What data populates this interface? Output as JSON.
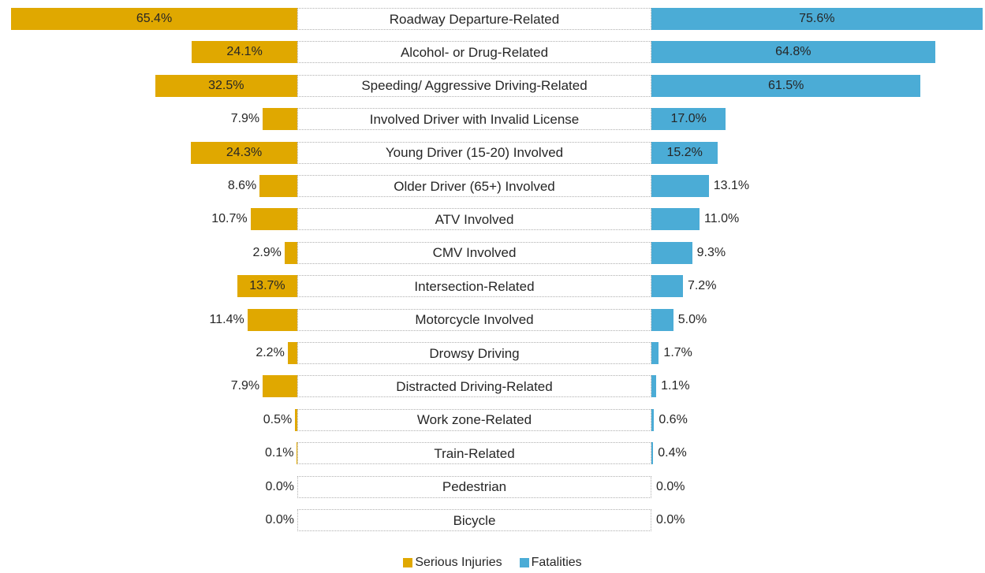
{
  "chart_data": {
    "type": "butterfly-bar",
    "categories": [
      "Roadway Departure-Related",
      "Alcohol- or Drug-Related",
      "Speeding/ Aggressive Driving-Related",
      "Involved Driver with Invalid License",
      "Young Driver (15-20) Involved",
      "Older Driver (65+) Involved",
      "ATV Involved",
      "CMV Involved",
      "Intersection-Related",
      "Motorcycle Involved",
      "Drowsy Driving",
      "Distracted Driving-Related",
      "Work zone-Related",
      "Train-Related",
      "Pedestrian",
      "Bicycle"
    ],
    "series": [
      {
        "name": "Serious Injuries",
        "color": "#e0a800",
        "side": "left",
        "values": [
          65.4,
          24.1,
          32.5,
          7.9,
          24.3,
          8.6,
          10.7,
          2.9,
          13.7,
          11.4,
          2.2,
          7.9,
          0.5,
          0.1,
          0.0,
          0.0
        ],
        "value_labels": [
          "65.4%",
          "24.1%",
          "32.5%",
          "7.9%",
          "24.3%",
          "8.6%",
          "10.7%",
          "2.9%",
          "13.7%",
          "11.4%",
          "2.2%",
          "7.9%",
          "0.5%",
          "0.1%",
          "0.0%",
          "0.0%"
        ]
      },
      {
        "name": "Fatalities",
        "color": "#4bacd6",
        "side": "right",
        "values": [
          75.6,
          64.8,
          61.5,
          17.0,
          15.2,
          13.1,
          11.0,
          9.3,
          7.2,
          5.0,
          1.7,
          1.1,
          0.6,
          0.4,
          0.0,
          0.0
        ],
        "value_labels": [
          "75.6%",
          "64.8%",
          "61.5%",
          "17.0%",
          "15.2%",
          "13.1%",
          "11.0%",
          "9.3%",
          "7.2%",
          "5.0%",
          "1.7%",
          "1.1%",
          "0.6%",
          "0.4%",
          "0.0%",
          "0.0%"
        ]
      }
    ]
  }
}
